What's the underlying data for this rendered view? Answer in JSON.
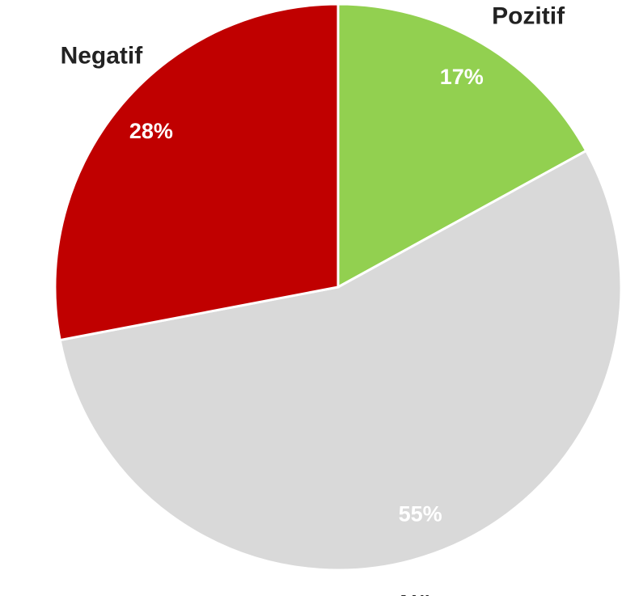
{
  "chart_data": {
    "type": "pie",
    "categories": [
      "Pozitif",
      "Nötr",
      "Negatif"
    ],
    "values": [
      17,
      55,
      28
    ],
    "value_labels": [
      "17%",
      "55%",
      "28%"
    ],
    "colors": [
      "#92d050",
      "#d9d9d9",
      "#c00000"
    ]
  }
}
